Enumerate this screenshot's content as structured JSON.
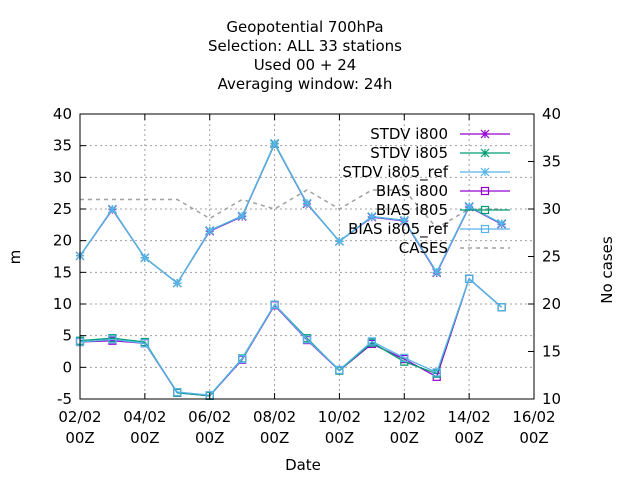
{
  "chart_data": {
    "type": "line",
    "title_lines": [
      "Geopotential 700hPa",
      "Selection: ALL      33 stations",
      "Used  00 + 24",
      "Averaging window: 24h"
    ],
    "xlabel": "Date",
    "ylabel": "m",
    "y2label": "No cases",
    "x_ticks": [
      {
        "x": 2,
        "line1": "02/02",
        "line2": "00Z"
      },
      {
        "x": 4,
        "line1": "04/02",
        "line2": "00Z"
      },
      {
        "x": 6,
        "line1": "06/02",
        "line2": "00Z"
      },
      {
        "x": 8,
        "line1": "08/02",
        "line2": "00Z"
      },
      {
        "x": 10,
        "line1": "10/02",
        "line2": "00Z"
      },
      {
        "x": 12,
        "line1": "12/02",
        "line2": "00Z"
      },
      {
        "x": 14,
        "line1": "14/02",
        "line2": "00Z"
      },
      {
        "x": 16,
        "line1": "16/02",
        "line2": "00Z"
      }
    ],
    "xlim": [
      2,
      16
    ],
    "ylim": [
      -5,
      40
    ],
    "y_ticks": [
      "-5",
      "0",
      "5",
      "10",
      "15",
      "20",
      "25",
      "30",
      "35",
      "40"
    ],
    "y2lim": [
      10,
      40
    ],
    "y2_ticks": [
      "10",
      "15",
      "20",
      "25",
      "30",
      "35",
      "40"
    ],
    "grid": true,
    "legend_position": "top-right",
    "x": [
      2,
      3,
      4,
      5,
      6,
      7,
      8,
      9,
      10,
      11,
      12,
      13,
      14,
      15
    ],
    "series": [
      {
        "name": "STDV i800",
        "axis": "y1",
        "color": "#9400d3",
        "marker": "star",
        "dash": false,
        "values": [
          17.6,
          24.9,
          17.3,
          13.3,
          21.5,
          23.8,
          35.3,
          25.8,
          19.9,
          23.7,
          23.1,
          14.9,
          25.3,
          22.6
        ]
      },
      {
        "name": "STDV i805",
        "axis": "y1",
        "color": "#009e73",
        "marker": "star",
        "dash": false,
        "values": [
          17.6,
          25.0,
          17.3,
          13.3,
          21.6,
          23.9,
          35.3,
          25.9,
          19.9,
          23.8,
          23.2,
          15.0,
          25.4,
          22.7
        ]
      },
      {
        "name": "STDV i805_ref",
        "axis": "y1",
        "color": "#56b4e9",
        "marker": "star",
        "dash": false,
        "values": [
          17.6,
          25.0,
          17.3,
          13.3,
          21.6,
          23.9,
          35.4,
          25.9,
          19.9,
          23.8,
          23.2,
          15.0,
          25.4,
          22.7
        ]
      },
      {
        "name": "BIAS i800",
        "axis": "y1",
        "color": "#9400d3",
        "marker": "square",
        "dash": false,
        "values": [
          4.0,
          4.2,
          3.8,
          -4.0,
          -4.5,
          1.2,
          9.8,
          4.3,
          -0.5,
          3.7,
          1.3,
          -1.5,
          14.0,
          9.5
        ]
      },
      {
        "name": "BIAS i805",
        "axis": "y1",
        "color": "#009e73",
        "marker": "square",
        "dash": false,
        "values": [
          4.2,
          4.6,
          4.0,
          -4.0,
          -4.5,
          1.4,
          9.9,
          4.6,
          -0.5,
          3.9,
          0.9,
          -1.0,
          14.0,
          9.5
        ]
      },
      {
        "name": "BIAS i805_ref",
        "axis": "y1",
        "color": "#56b4e9",
        "marker": "square",
        "dash": false,
        "values": [
          4.0,
          4.4,
          3.8,
          -3.9,
          -4.4,
          1.3,
          9.9,
          4.4,
          -0.4,
          4.1,
          1.5,
          -0.8,
          14.0,
          9.5
        ]
      },
      {
        "name": "CASES",
        "axis": "y2",
        "color": "#a0a0a0",
        "marker": "none",
        "dash": true,
        "values": [
          31,
          31,
          31,
          31,
          29,
          31,
          30,
          32,
          30,
          32,
          32,
          28,
          30,
          30
        ]
      }
    ]
  }
}
